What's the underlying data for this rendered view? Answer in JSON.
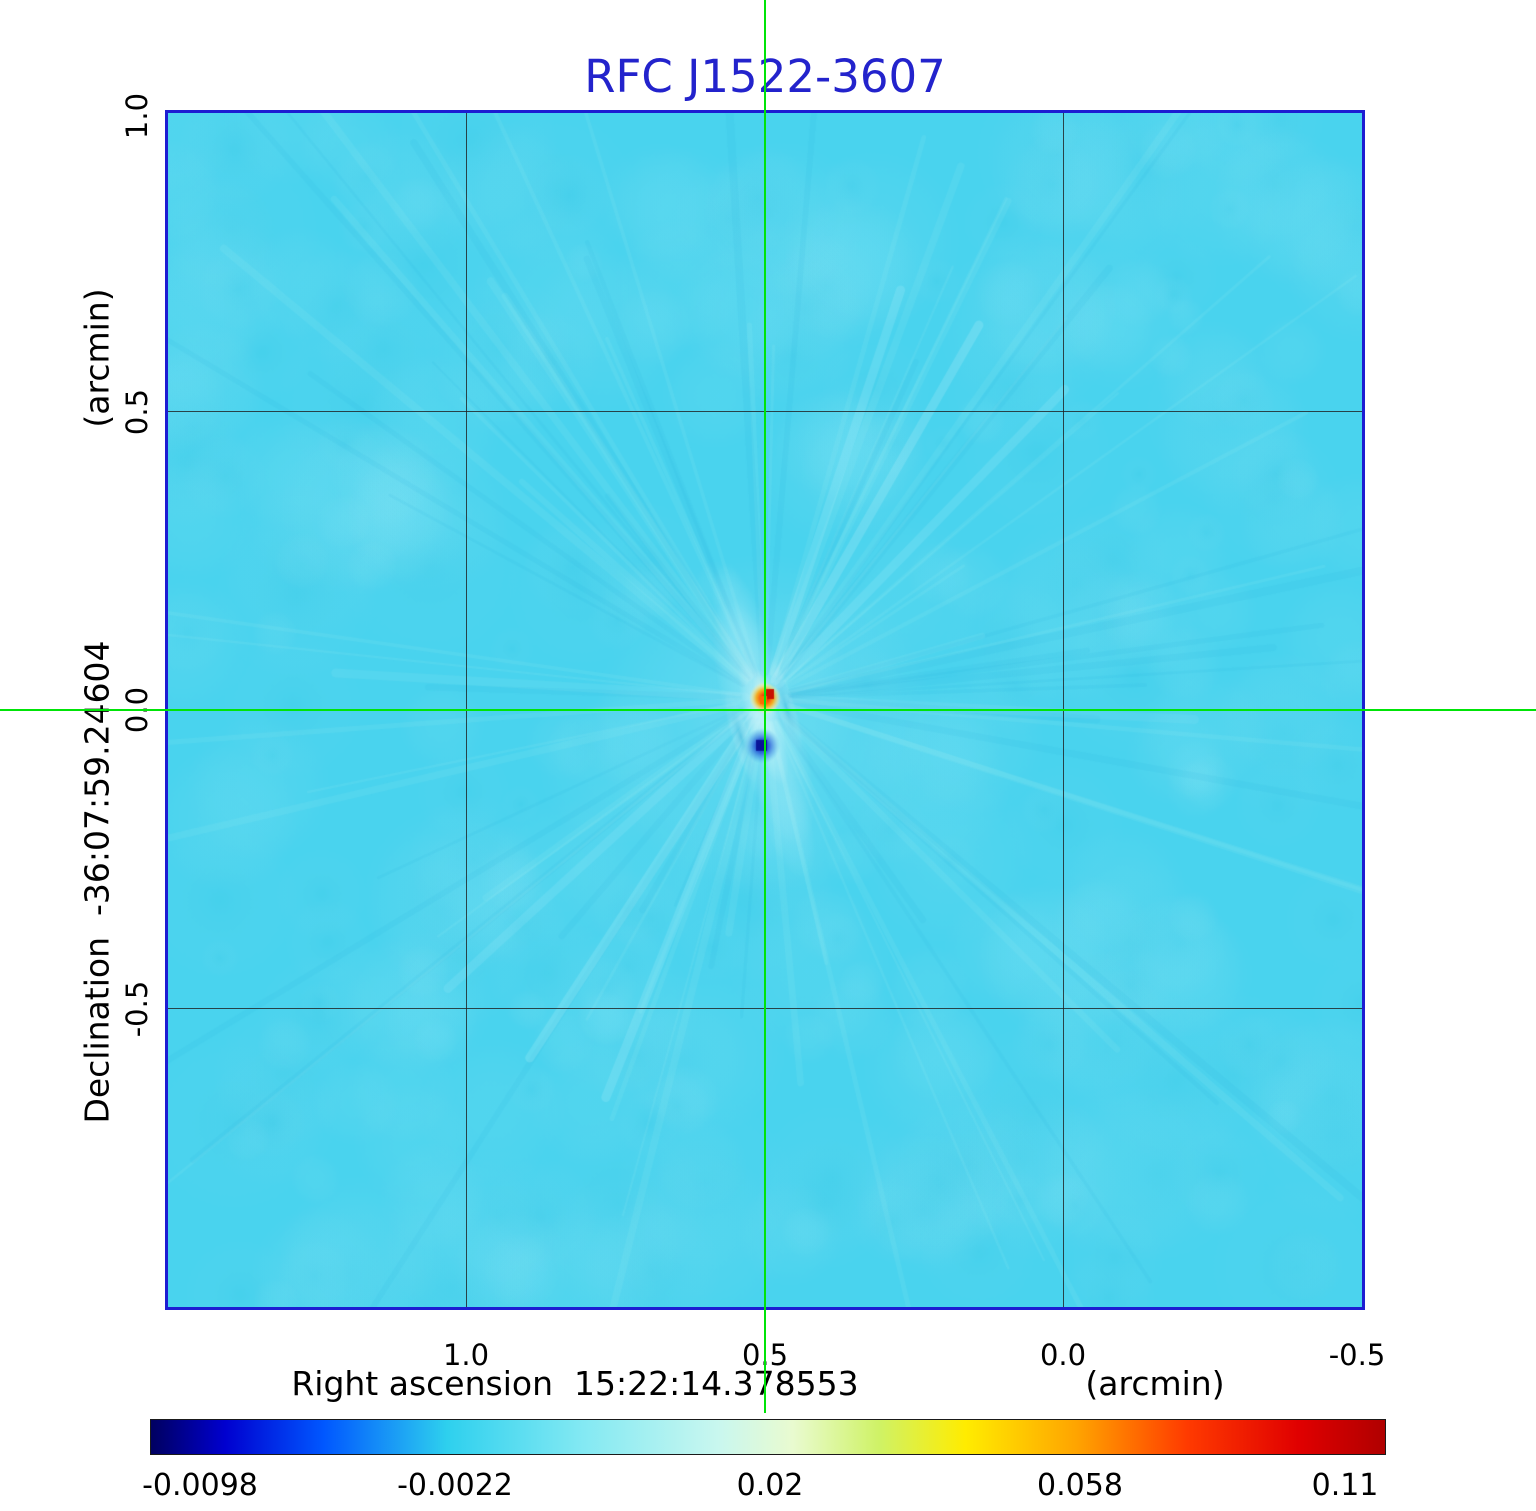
{
  "chart_data": {
    "type": "heatmap",
    "title": "RFC J1522-3607",
    "title_color": "#2323cc",
    "x_axis": {
      "label": "Right ascension  15:22:14.378553",
      "unit": "(arcmin)",
      "ticks": [
        "1.0",
        "0.5",
        "0.0",
        "-0.5"
      ],
      "tick_values": [
        1.0,
        0.5,
        0.0,
        -0.5
      ],
      "range_arcmin": [
        1.5,
        -0.5
      ]
    },
    "y_axis": {
      "label": "Declination  -36:07:59.24604",
      "unit": "(arcmin)",
      "ticks": [
        "1.0",
        "0.5",
        "0.0",
        "-0.5"
      ],
      "tick_values": [
        1.0,
        0.5,
        0.0,
        -0.5
      ],
      "range_arcmin": [
        -1.0,
        1.0
      ]
    },
    "grid": {
      "x_arcmin": [
        1.0,
        0.5,
        0.0
      ],
      "y_arcmin": [
        0.5,
        0.0,
        -0.5
      ],
      "color": "rgba(30,30,30,0.8)"
    },
    "crosshair": {
      "x_arcmin": 0.5,
      "y_arcmin": 0.0,
      "color": "#00e408"
    },
    "frame_color": "#1d1dd2",
    "colorbar": {
      "tick_labels": [
        "-0.0098",
        "-0.0022",
        "0.02",
        "0.058",
        "0.11"
      ],
      "min": -0.0098,
      "max": 0.11,
      "gradient": [
        {
          "pos": 0.0,
          "color": "#000060"
        },
        {
          "pos": 0.06,
          "color": "#0000cf"
        },
        {
          "pos": 0.14,
          "color": "#0057ff"
        },
        {
          "pos": 0.24,
          "color": "#2ed0ee"
        },
        {
          "pos": 0.35,
          "color": "#83e9f3"
        },
        {
          "pos": 0.46,
          "color": "#c9f7ef"
        },
        {
          "pos": 0.52,
          "color": "#e9fbd0"
        },
        {
          "pos": 0.59,
          "color": "#cff266"
        },
        {
          "pos": 0.66,
          "color": "#ffec00"
        },
        {
          "pos": 0.75,
          "color": "#ffa400"
        },
        {
          "pos": 0.84,
          "color": "#ff3a00"
        },
        {
          "pos": 0.93,
          "color": "#e00000"
        },
        {
          "pos": 1.0,
          "color": "#b00000"
        }
      ]
    },
    "map": {
      "background_color": "#49d3ee",
      "source": {
        "peak_x_arcmin": 0.5,
        "peak_y_arcmin": 0.02,
        "peak_value": 0.11,
        "negative_x_arcmin": 0.505,
        "negative_y_arcmin": -0.06,
        "negative_value": -0.0098,
        "position_angle_deg": 17
      }
    }
  }
}
